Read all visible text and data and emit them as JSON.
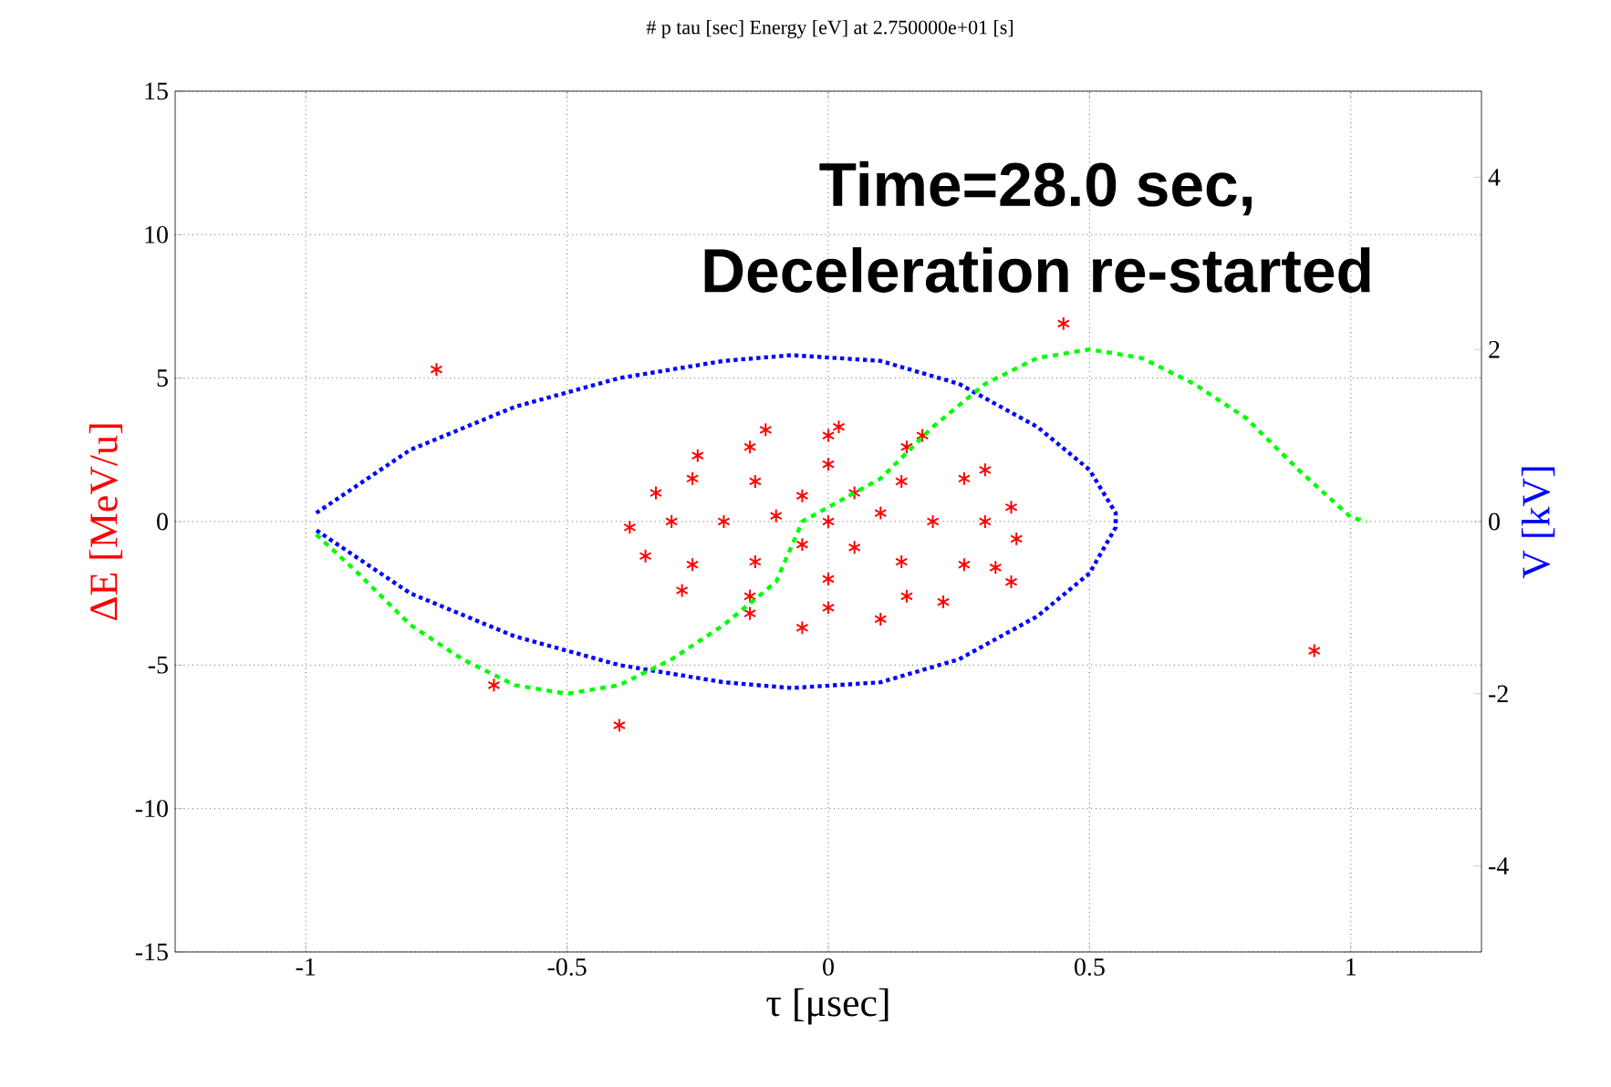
{
  "chart_data": {
    "type": "scatter",
    "title": "# p    tau [sec]   Energy [eV]  at 2.750000e+01 [s]",
    "xlabel": "τ [μsec]",
    "ylabel": "ΔE [MeV/u]",
    "y2label": "V [kV]",
    "annotations": [
      "Time=28.0 sec,",
      "Deceleration re-started"
    ],
    "xlim": [
      -1.25,
      1.25
    ],
    "ylim": [
      -15,
      15
    ],
    "y2lim": [
      -5,
      5
    ],
    "xticks": [
      -1,
      -0.5,
      0,
      0.5,
      1
    ],
    "yticks": [
      -15,
      -10,
      -5,
      0,
      5,
      10,
      15
    ],
    "y2ticks": [
      -4,
      -2,
      0,
      2,
      4
    ],
    "grid": true,
    "series": [
      {
        "color": "#ff0000",
        "marker": "cross",
        "x": [
          0.3,
          0.26,
          0.15,
          0,
          -0.15,
          -0.26,
          -0.3,
          -0.26,
          -0.15,
          0,
          0.15,
          0.26,
          0.35,
          0.3,
          0.18,
          0.02,
          -0.12,
          -0.25,
          -0.33,
          -0.38,
          -0.35,
          -0.28,
          -0.15,
          -0.05,
          0.1,
          0.22,
          0.32,
          0.36,
          0.2,
          0.14,
          0,
          -0.14,
          -0.2,
          -0.14,
          0,
          0.14,
          0.1,
          0.05,
          -0.05,
          -0.1,
          -0.05,
          0.05,
          0,
          -0.75,
          0.45,
          -0.64,
          -0.4,
          0.93,
          0.35
        ],
        "values": [
          0,
          1.5,
          2.6,
          3.0,
          2.6,
          1.5,
          0,
          -1.5,
          -2.6,
          -3.0,
          -2.6,
          -1.5,
          0.5,
          1.8,
          3.0,
          3.3,
          3.2,
          2.3,
          1.0,
          -0.2,
          -1.2,
          -2.4,
          -3.2,
          -3.7,
          -3.4,
          -2.8,
          -1.6,
          -0.6,
          0,
          1.4,
          2.0,
          1.4,
          0,
          -1.4,
          -2.0,
          -1.4,
          0.3,
          1.0,
          0.9,
          0.2,
          -0.8,
          -0.9,
          0,
          5.3,
          6.9,
          -5.7,
          -7.1,
          -4.5,
          -2.1
        ]
      },
      {
        "type": "line",
        "color": "#0000ff",
        "line_style": "dotted",
        "marker": "none",
        "x": [
          -0.98,
          -0.8,
          -0.6,
          -0.4,
          -0.2,
          -0.07,
          0.1,
          0.25,
          0.4,
          0.5,
          0.55,
          0.55,
          0.5,
          0.4,
          0.25,
          0.1,
          -0.07,
          -0.2,
          -0.4,
          -0.6,
          -0.8,
          -0.98
        ],
        "values": [
          0.3,
          2.5,
          4.0,
          5.0,
          5.6,
          5.8,
          5.6,
          4.8,
          3.3,
          1.8,
          0.3,
          -0.2,
          -1.8,
          -3.3,
          -4.8,
          -5.6,
          -5.8,
          -5.6,
          -5.0,
          -4.0,
          -2.5,
          -0.3
        ]
      },
      {
        "type": "line",
        "axis": "y2",
        "color": "#00ff00",
        "line_style": "dashed",
        "marker": "none",
        "x": [
          -0.98,
          -0.9,
          -0.8,
          -0.7,
          -0.6,
          -0.5,
          -0.4,
          -0.3,
          -0.2,
          -0.1,
          -0.05,
          0.1,
          0.2,
          0.3,
          0.4,
          0.5,
          0.6,
          0.7,
          0.8,
          0.9,
          1.0,
          1.03
        ],
        "values": [
          -0.15,
          -0.6,
          -1.2,
          -1.6,
          -1.9,
          -2.0,
          -1.9,
          -1.6,
          -1.2,
          -0.7,
          0,
          0.5,
          1.1,
          1.6,
          1.9,
          2.0,
          1.9,
          1.6,
          1.2,
          0.6,
          0.05,
          0
        ]
      }
    ]
  }
}
